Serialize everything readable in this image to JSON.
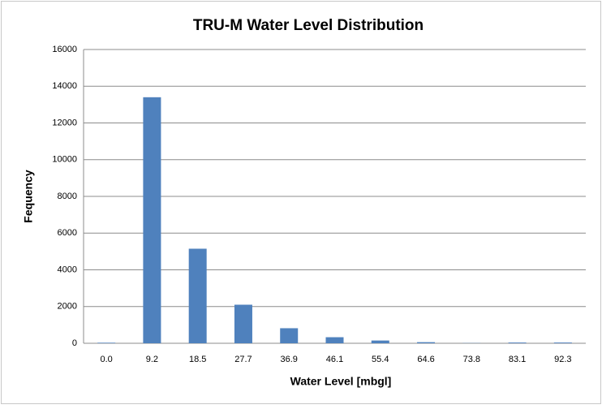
{
  "chart_data": {
    "type": "bar",
    "title": "TRU-M Water Level Distribution",
    "x_label": "Water Level [mbgl]",
    "y_label": "Fequency",
    "categories": [
      "0.0",
      "9.2",
      "18.5",
      "27.7",
      "36.9",
      "46.1",
      "55.4",
      "64.6",
      "73.8",
      "83.1",
      "92.3"
    ],
    "values": [
      30,
      13400,
      5150,
      2100,
      820,
      330,
      150,
      60,
      10,
      40,
      40
    ],
    "color": "#4f81bd",
    "ylim": [
      0,
      16000
    ],
    "yticks": [
      0,
      2000,
      4000,
      6000,
      8000,
      10000,
      12000,
      14000,
      16000
    ],
    "grid": true
  }
}
